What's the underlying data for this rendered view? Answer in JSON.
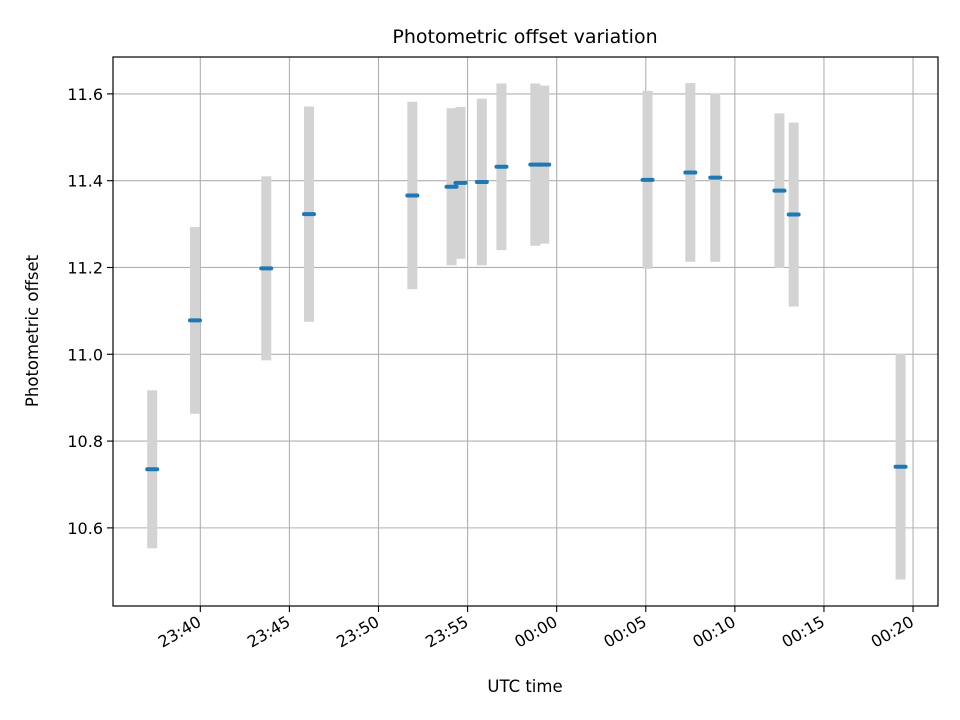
{
  "chart_data": {
    "type": "scatter",
    "title": "Photometric offset variation",
    "xlabel": "UTC time",
    "ylabel": "Photometric offset",
    "grid": true,
    "legend": "none",
    "colors": {
      "point": "#1f77b4",
      "errorbar": "#d3d3d3",
      "grid": "#b0b0b0"
    },
    "xlim": [
      "23:35:06",
      "00:21:24"
    ],
    "ylim": [
      10.42,
      11.685
    ],
    "x_ticks": [
      "23:40",
      "23:45",
      "23:50",
      "23:55",
      "00:00",
      "00:05",
      "00:10",
      "00:15",
      "00:20"
    ],
    "y_ticks": [
      "10.6",
      "10.8",
      "11.0",
      "11.2",
      "11.4",
      "11.6"
    ],
    "points": [
      {
        "x": "23:37:18",
        "y": 10.735,
        "yerr": 0.182
      },
      {
        "x": "23:39:42",
        "y": 11.078,
        "yerr": 0.215
      },
      {
        "x": "23:43:42",
        "y": 11.198,
        "yerr": 0.212
      },
      {
        "x": "23:46:06",
        "y": 11.323,
        "yerr": 0.248
      },
      {
        "x": "23:51:54",
        "y": 11.366,
        "yerr": 0.216
      },
      {
        "x": "23:54:06",
        "y": 11.386,
        "yerr": 0.181
      },
      {
        "x": "23:54:36",
        "y": 11.395,
        "yerr": 0.175
      },
      {
        "x": "23:55:48",
        "y": 11.397,
        "yerr": 0.192
      },
      {
        "x": "23:56:54",
        "y": 11.432,
        "yerr": 0.192
      },
      {
        "x": "23:58:48",
        "y": 11.437,
        "yerr": 0.187
      },
      {
        "x": "23:59:18",
        "y": 11.437,
        "yerr": 0.182
      },
      {
        "x": "00:05:06",
        "y": 11.402,
        "yerr": 0.205
      },
      {
        "x": "00:07:30",
        "y": 11.419,
        "yerr": 0.206
      },
      {
        "x": "00:08:54",
        "y": 11.407,
        "yerr": 0.194
      },
      {
        "x": "00:12:30",
        "y": 11.377,
        "yerr": 0.178
      },
      {
        "x": "00:13:18",
        "y": 11.322,
        "yerr": 0.212
      },
      {
        "x": "00:19:18",
        "y": 10.741,
        "yerr": 0.26
      }
    ]
  }
}
